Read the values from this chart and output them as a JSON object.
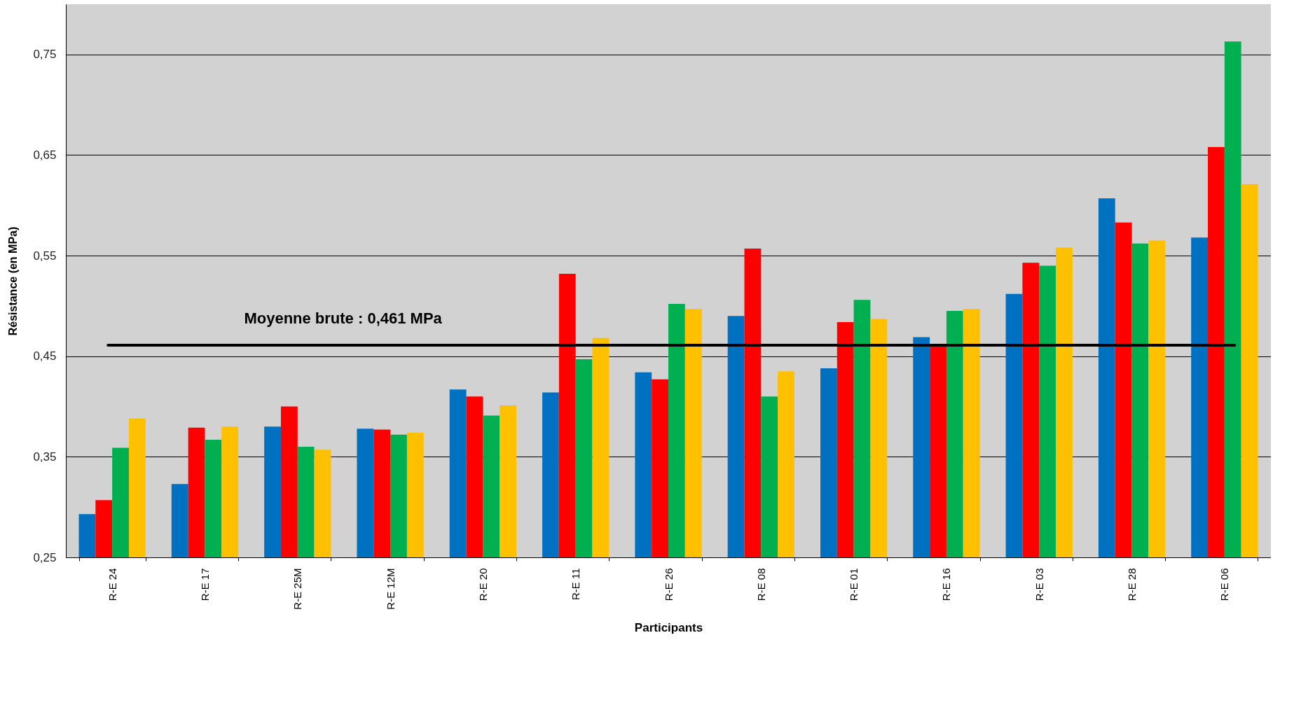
{
  "chart_data": {
    "type": "bar",
    "xlabel": "Participants",
    "ylabel": "Résistance  (en MPa)",
    "categories": [
      "R-E 24",
      "R-E 17",
      "R-E 25M",
      "R-E 12M",
      "R-E 20",
      "R-E 11",
      "R-E 26",
      "R-E 08",
      "R-E 01",
      "R-E 16",
      "R-E 03",
      "R-E 28",
      "R-E 06"
    ],
    "series": [
      {
        "color": "#0070c0",
        "values": [
          0.293,
          0.323,
          0.38,
          0.378,
          0.417,
          0.414,
          0.434,
          0.49,
          0.438,
          0.469,
          0.512,
          0.607,
          0.568
        ]
      },
      {
        "color": "#ff0000",
        "values": [
          0.307,
          0.379,
          0.4,
          0.377,
          0.41,
          0.532,
          0.427,
          0.557,
          0.484,
          0.46,
          0.543,
          0.583,
          0.658
        ]
      },
      {
        "color": "#00b050",
        "values": [
          0.359,
          0.367,
          0.36,
          0.372,
          0.391,
          0.447,
          0.502,
          0.41,
          0.506,
          0.495,
          0.54,
          0.562,
          0.763
        ]
      },
      {
        "color": "#ffc000",
        "values": [
          0.388,
          0.38,
          0.357,
          0.374,
          0.401,
          0.468,
          0.497,
          0.435,
          0.487,
          0.497,
          0.558,
          0.565,
          0.621
        ]
      }
    ],
    "ylim": [
      0.25,
      0.8
    ],
    "yticks": [
      {
        "value": 0.25,
        "label": "0,25"
      },
      {
        "value": 0.35,
        "label": "0,35"
      },
      {
        "value": 0.45,
        "label": "0,45"
      },
      {
        "value": 0.55,
        "label": "0,55"
      },
      {
        "value": 0.65,
        "label": "0,65"
      },
      {
        "value": 0.75,
        "label": "0,75"
      }
    ],
    "ref_lines": [
      {
        "axis": "y",
        "value": 0.461,
        "label": "Moyenne brute : 0,461 MPa",
        "color": "#000000"
      }
    ],
    "grid": "y",
    "legend": false
  }
}
